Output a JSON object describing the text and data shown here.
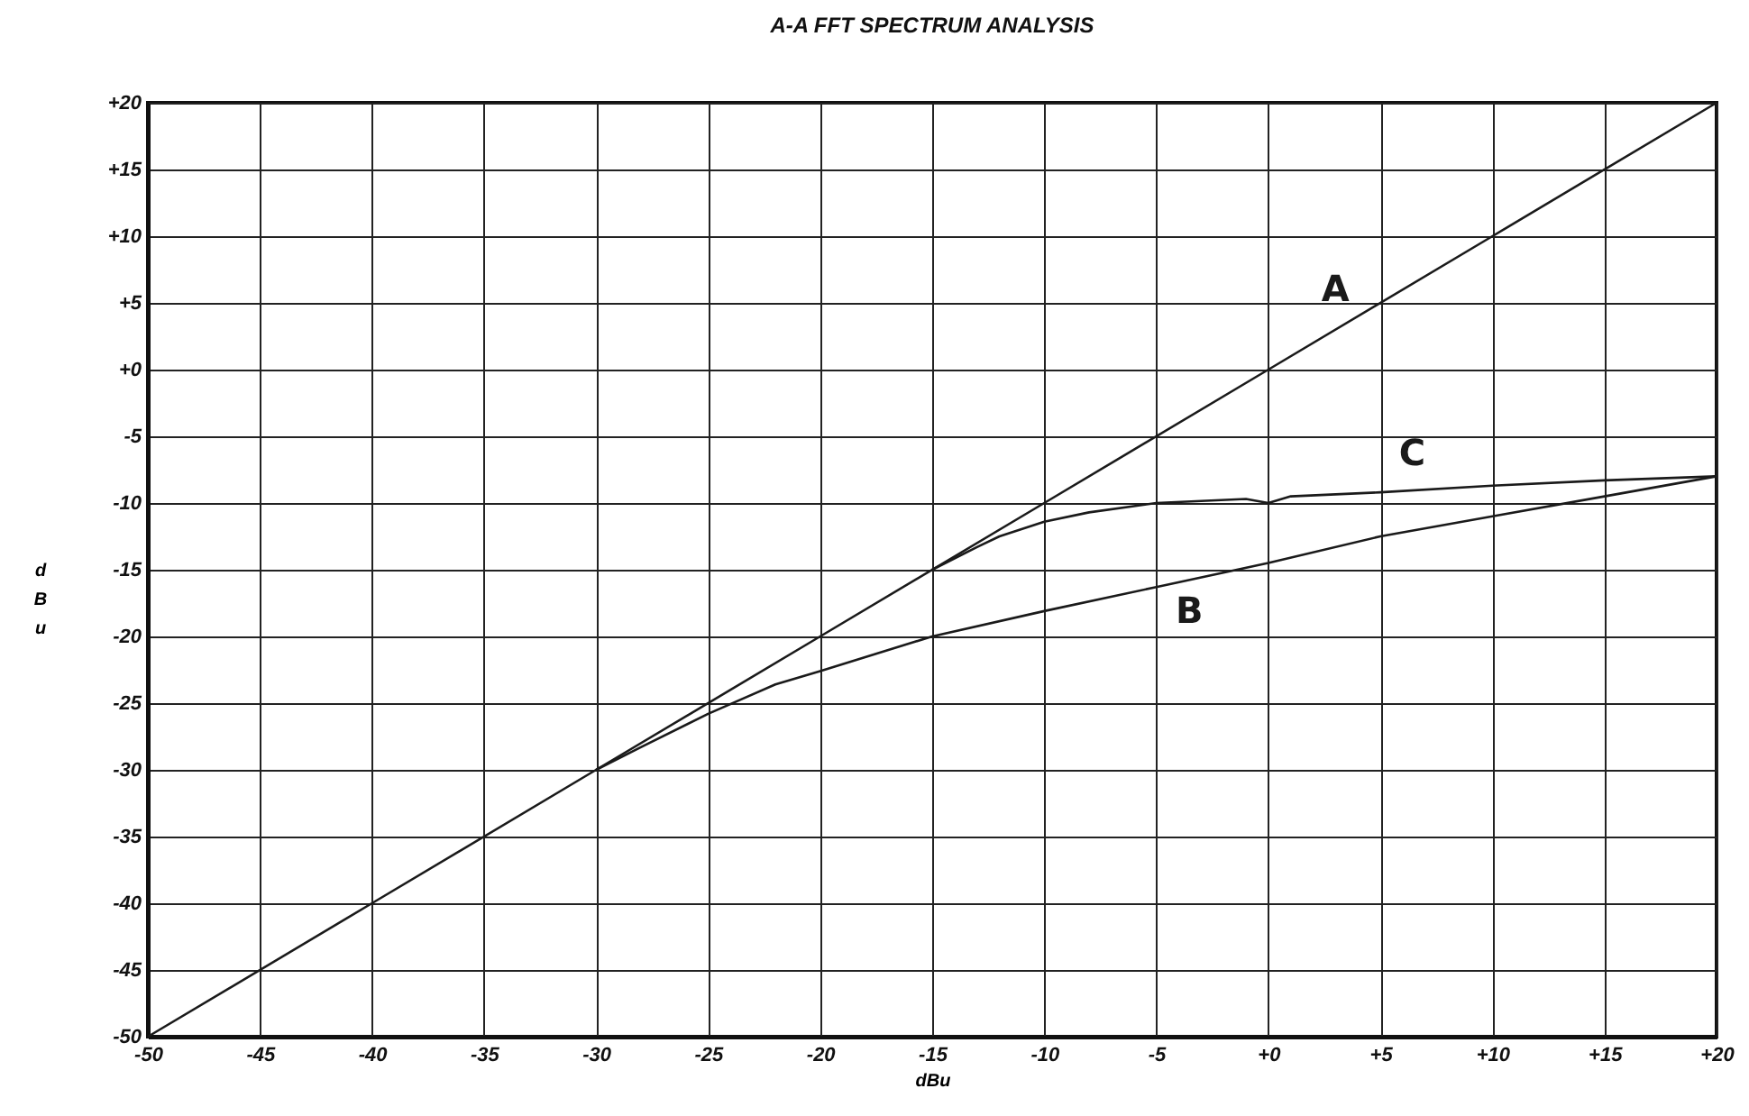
{
  "chart_data": {
    "type": "line",
    "title": "A-A FFT SPECTRUM ANALYSIS",
    "xlabel": "dBu",
    "ylabel": "dBu",
    "xlim": [
      -50,
      20
    ],
    "ylim": [
      -50,
      20
    ],
    "xticks": [
      -50,
      -45,
      -40,
      -35,
      -30,
      -25,
      -20,
      -15,
      -10,
      -5,
      {
        "value": 0,
        "label": "+0"
      },
      {
        "value": 5,
        "label": "+5"
      },
      {
        "value": 10,
        "label": "+10"
      },
      {
        "value": 15,
        "label": "+15"
      },
      {
        "value": 20,
        "label": "+20"
      }
    ],
    "yticks": [
      -50,
      -45,
      -40,
      -35,
      -30,
      -25,
      -20,
      -15,
      -10,
      -5,
      {
        "value": 0,
        "label": "+0"
      },
      {
        "value": 5,
        "label": "+5"
      },
      {
        "value": 10,
        "label": "+10"
      },
      {
        "value": 15,
        "label": "+15"
      },
      {
        "value": 20,
        "label": "+20"
      }
    ],
    "grid": true,
    "legend": false,
    "marker": "none",
    "line_style": "solid",
    "series": [
      {
        "name": "A",
        "color": "#1a1a1a",
        "x": [
          -50,
          -40,
          -30,
          -20,
          -10,
          0,
          10,
          20
        ],
        "values": [
          -50,
          -40,
          -30,
          -20,
          -10,
          0,
          10,
          20
        ]
      },
      {
        "name": "B",
        "color": "#1a1a1a",
        "x": [
          -30,
          -28,
          -25,
          -22,
          -20,
          -15,
          -10,
          -5,
          0,
          5,
          10,
          15,
          20
        ],
        "values": [
          -30,
          -28.3,
          -25.8,
          -23.6,
          -22.6,
          -20,
          -18.1,
          -16.3,
          -14.5,
          -12.5,
          -11,
          -9.5,
          -8
        ]
      },
      {
        "name": "C",
        "color": "#1a1a1a",
        "x": [
          -15,
          -13,
          -12,
          -10,
          -8,
          -5,
          -1,
          0,
          1,
          5,
          10,
          15,
          20
        ],
        "values": [
          -15,
          -13.3,
          -12.5,
          -11.4,
          -10.7,
          -10,
          -9.7,
          -10,
          -9.5,
          -9.2,
          -8.7,
          -8.3,
          -8
        ]
      }
    ]
  }
}
